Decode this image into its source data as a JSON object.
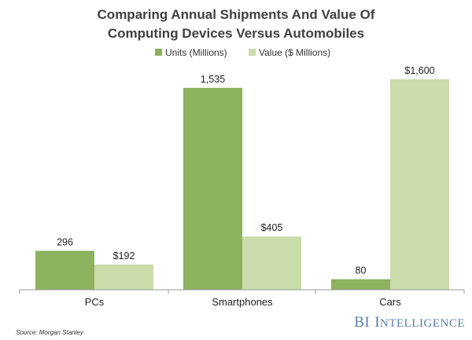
{
  "chart_data": {
    "type": "bar",
    "title_line1": "Comparing Annual Shipments And Value Of",
    "title_line2": "Computing Devices Versus Automobiles",
    "categories": [
      "PCs",
      "Smartphones",
      "Cars"
    ],
    "series": [
      {
        "name": "Units (Millions)",
        "color": "#8cb25e",
        "values": [
          296,
          1535,
          80
        ],
        "labels": [
          "296",
          "1,535",
          "80"
        ]
      },
      {
        "name": "Value ($ Millions)",
        "color": "#c9dcaa",
        "values": [
          192,
          405,
          1600
        ],
        "labels": [
          "$192",
          "$405",
          "$1,600"
        ]
      }
    ],
    "ylim": [
      0,
      1600
    ],
    "grid": false,
    "legend_position": "top-center",
    "source": "Source: Morgan Stanley"
  },
  "brand": {
    "initials": "BI",
    "first_letter": "I",
    "rest": "NTELLIGENCE"
  }
}
